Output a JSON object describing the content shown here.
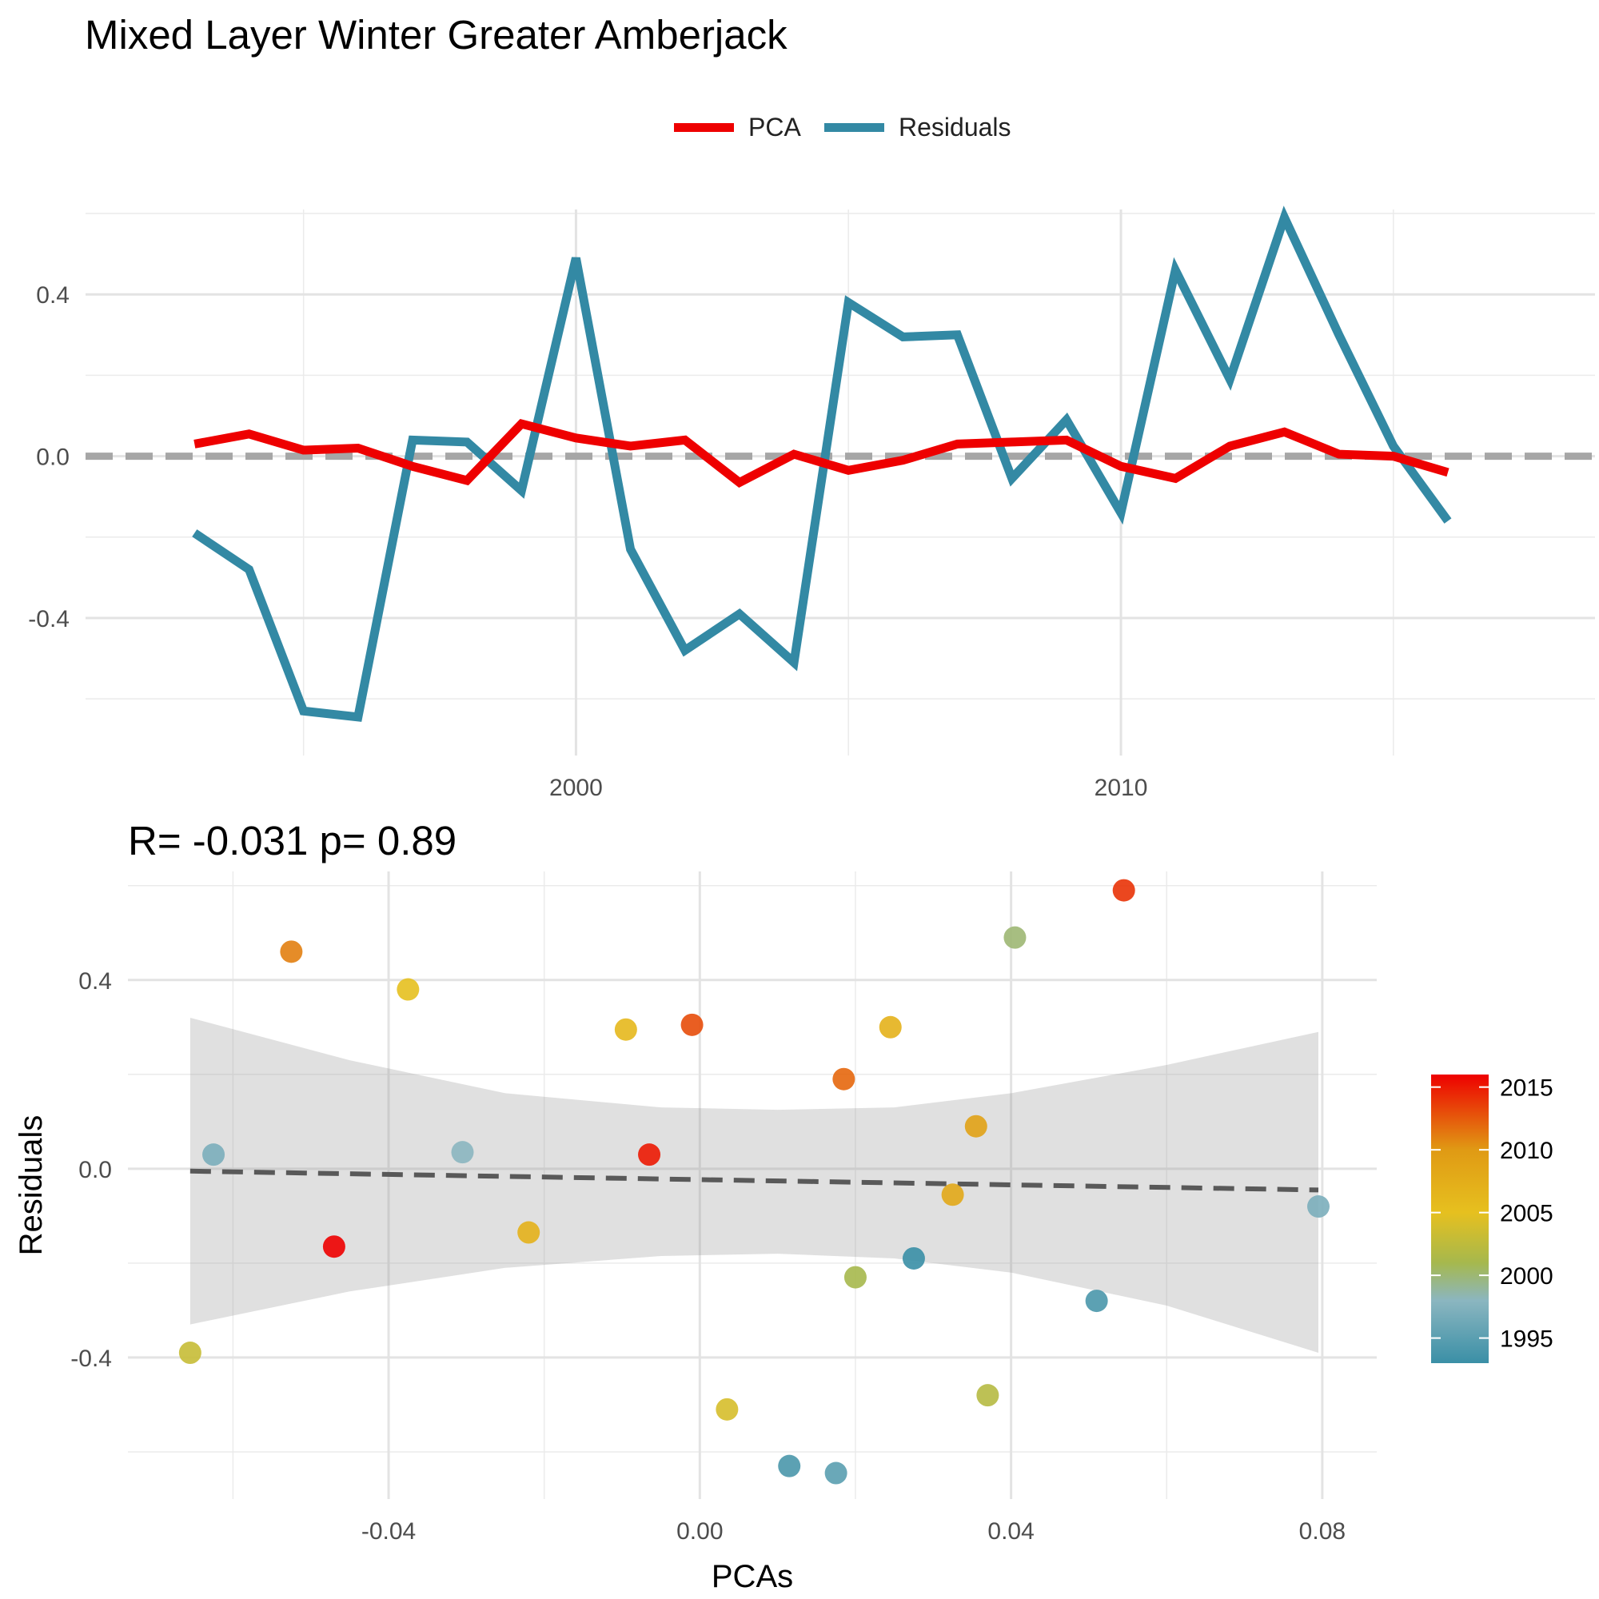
{
  "title": "Mixed Layer Winter Greater Amberjack",
  "legend": {
    "pca_label": "PCA",
    "residuals_label": "Residuals",
    "pca_color": "#ee0000",
    "residuals_color": "#3389a4"
  },
  "stat_text": "R= -0.031  p= 0.89",
  "chart_data": [
    {
      "type": "line",
      "title": "Mixed Layer Winter Greater Amberjack",
      "x": [
        1993,
        1994,
        1995,
        1996,
        1997,
        1998,
        1999,
        2000,
        2001,
        2002,
        2003,
        2004,
        2005,
        2006,
        2007,
        2008,
        2009,
        2010,
        2011,
        2012,
        2013,
        2014,
        2015,
        2016
      ],
      "series": [
        {
          "name": "PCA",
          "color": "#ee0000",
          "values": [
            0.03,
            0.055,
            0.015,
            0.02,
            -0.025,
            -0.06,
            0.08,
            0.045,
            0.025,
            0.04,
            -0.065,
            0.005,
            -0.035,
            -0.01,
            0.03,
            0.035,
            0.04,
            -0.025,
            -0.055,
            0.025,
            0.06,
            0.005,
            0.0,
            -0.04
          ]
        },
        {
          "name": "Residuals",
          "color": "#3389a4",
          "values": [
            -0.19,
            -0.28,
            -0.63,
            -0.645,
            0.04,
            0.035,
            -0.085,
            0.49,
            -0.23,
            -0.48,
            -0.39,
            -0.51,
            0.38,
            0.295,
            0.3,
            -0.055,
            0.09,
            -0.14,
            0.46,
            0.19,
            0.59,
            0.3,
            0.025,
            -0.16
          ]
        }
      ],
      "xticks": [
        "2000",
        "2010"
      ],
      "yticks": [
        "-0.4",
        "0.0",
        "0.4"
      ],
      "xlim": [
        1991,
        2018.7
      ],
      "ylim": [
        -0.74,
        0.61
      ],
      "reference_line": {
        "y": 0.0,
        "style": "dashed",
        "color": "#a6a6a6"
      },
      "legend_position": "top",
      "grid": true
    },
    {
      "type": "scatter",
      "subtitle": "R= -0.031  p= 0.89",
      "xlabel": "PCAs",
      "ylabel": "Residuals",
      "xticks": [
        "-0.04",
        "0.00",
        "0.04",
        "0.08"
      ],
      "yticks": [
        "-0.4",
        "0.0",
        "0.4"
      ],
      "xlim": [
        -0.0735,
        0.087
      ],
      "ylim": [
        -0.7,
        0.63
      ],
      "points": [
        {
          "x": -0.0655,
          "y": -0.39,
          "year": 2003
        },
        {
          "x": -0.0625,
          "y": 0.03,
          "year": 1997
        },
        {
          "x": -0.0525,
          "y": 0.46,
          "year": 2011
        },
        {
          "x": -0.047,
          "y": -0.165,
          "year": 2016
        },
        {
          "x": -0.0375,
          "y": 0.38,
          "year": 2005
        },
        {
          "x": -0.0305,
          "y": 0.035,
          "year": 1998
        },
        {
          "x": -0.022,
          "y": -0.135,
          "year": 2007
        },
        {
          "x": -0.0095,
          "y": 0.295,
          "year": 2006
        },
        {
          "x": -0.0065,
          "y": 0.03,
          "year": 2015
        },
        {
          "x": -0.001,
          "y": 0.305,
          "year": 2013
        },
        {
          "x": 0.0035,
          "y": -0.51,
          "year": 2004
        },
        {
          "x": 0.0115,
          "y": -0.63,
          "year": 1994
        },
        {
          "x": 0.0175,
          "y": -0.645,
          "year": 1995
        },
        {
          "x": 0.0185,
          "y": 0.19,
          "year": 2012
        },
        {
          "x": 0.02,
          "y": -0.23,
          "year": 2001
        },
        {
          "x": 0.0245,
          "y": 0.3,
          "year": 2007
        },
        {
          "x": 0.0275,
          "y": -0.19,
          "year": 1993
        },
        {
          "x": 0.0325,
          "y": -0.055,
          "year": 2008
        },
        {
          "x": 0.0355,
          "y": 0.09,
          "year": 2009
        },
        {
          "x": 0.037,
          "y": -0.48,
          "year": 2002
        },
        {
          "x": 0.0405,
          "y": 0.49,
          "year": 2000
        },
        {
          "x": 0.051,
          "y": -0.28,
          "year": 1994
        },
        {
          "x": 0.0545,
          "y": 0.59,
          "year": 2014
        },
        {
          "x": 0.0795,
          "y": -0.08,
          "year": 1997
        }
      ],
      "fit_line": {
        "x": [
          -0.0655,
          0.0795
        ],
        "y": [
          -0.005,
          -0.045
        ],
        "style": "dashed",
        "color": "#595959"
      },
      "confidence_band": {
        "x": [
          -0.0655,
          -0.045,
          -0.025,
          -0.005,
          0.01,
          0.025,
          0.04,
          0.06,
          0.0795
        ],
        "upper": [
          0.32,
          0.23,
          0.16,
          0.13,
          0.125,
          0.13,
          0.16,
          0.22,
          0.29
        ],
        "lower": [
          -0.33,
          -0.26,
          -0.21,
          -0.185,
          -0.18,
          -0.19,
          -0.22,
          -0.29,
          -0.39
        ]
      },
      "colorbar": {
        "ticks": [
          "2015",
          "2010",
          "2005",
          "2000",
          "1995"
        ],
        "tick_values": [
          2015,
          2010,
          2005,
          2000,
          1995
        ],
        "range": [
          1993,
          2016
        ],
        "stops": [
          {
            "value": 1993,
            "color": "#3a8fa6"
          },
          {
            "value": 1998,
            "color": "#8bb6c0"
          },
          {
            "value": 2001,
            "color": "#a6b84d"
          },
          {
            "value": 2005,
            "color": "#e6c01f"
          },
          {
            "value": 2010,
            "color": "#e09a14"
          },
          {
            "value": 2016,
            "color": "#ee0000"
          }
        ]
      }
    }
  ]
}
